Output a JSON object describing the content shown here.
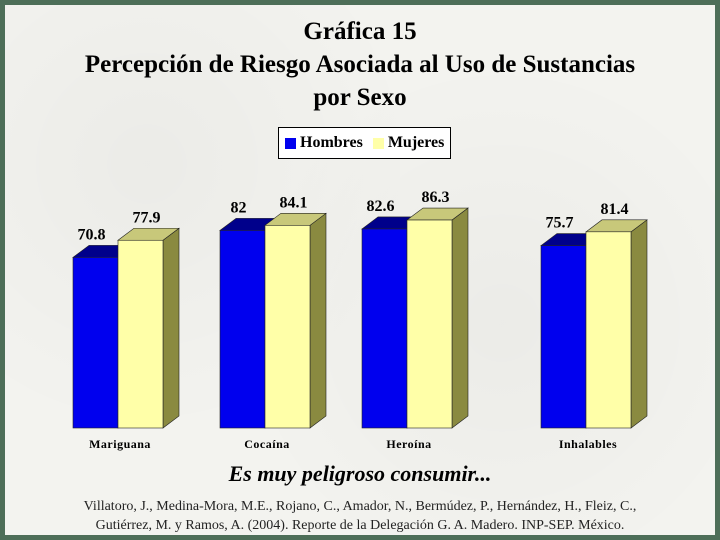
{
  "title_lines": [
    "Gráfica 15",
    "Percepción de Riesgo Asociada al Uso de Sustancias",
    "por Sexo"
  ],
  "subtitle": "Es muy peligroso consumir...",
  "citation_lines": [
    "Villatoro, J., Medina-Mora, M.E., Rojano, C., Amador, N., Bermúdez, P., Hernández, H., Fleiz, C.,",
    "Gutiérrez, M. y Ramos, A. (2004). Reporte de la Delegación G. A. Madero. INP-SEP. México."
  ],
  "colors": {
    "hombres": "#0000ee",
    "hombres_top": "#00008b",
    "hombres_side": "#000070",
    "mujeres": "#ffffa8",
    "mujeres_top": "#c8c87a",
    "mujeres_side": "#8a8a40"
  },
  "chart_data": {
    "type": "bar",
    "categories": [
      "Mariguana",
      "Cocaína",
      "Heroína",
      "Inhalables"
    ],
    "series": [
      {
        "name": "Hombres",
        "values": [
          70.8,
          82,
          82.6,
          75.7
        ],
        "labels": [
          "70.8",
          "82",
          "82.6",
          "75.7"
        ]
      },
      {
        "name": "Mujeres",
        "values": [
          77.9,
          84.1,
          86.3,
          81.4
        ],
        "labels": [
          "77.9",
          "84.1",
          "86.3",
          "81.4"
        ]
      }
    ],
    "ylim": [
      0,
      100
    ],
    "grid": false,
    "legend": "top-center",
    "three_d": true
  }
}
